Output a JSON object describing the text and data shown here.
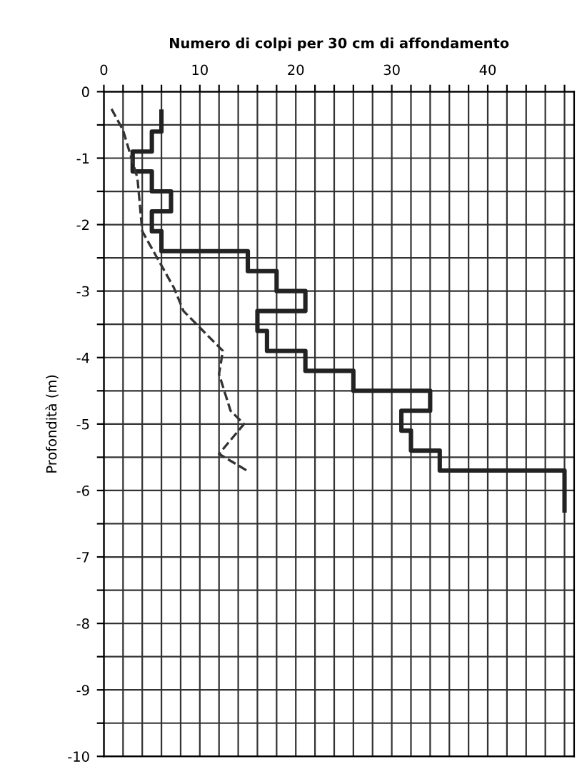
{
  "chart_data": {
    "type": "line",
    "title": "Numero di colpi per 30 cm di affondamento",
    "ylabel": "Profondità (m)",
    "series": [
      {
        "color": "#222222",
        "line_style": "solid",
        "x": [
          6,
          6,
          5,
          5,
          3,
          3,
          5,
          5,
          7,
          7,
          5,
          5,
          6,
          6,
          15,
          15,
          18,
          18,
          21,
          21,
          16,
          16,
          17,
          17,
          21,
          21,
          26,
          26,
          34,
          34,
          31,
          31,
          32,
          32,
          35,
          35,
          48,
          48
        ],
        "values": [
          -0.3,
          -0.6,
          -0.6,
          -0.9,
          -0.9,
          -1.2,
          -1.2,
          -1.5,
          -1.5,
          -1.8,
          -1.8,
          -2.1,
          -2.1,
          -2.4,
          -2.4,
          -2.7,
          -2.7,
          -3.0,
          -3.0,
          -3.3,
          -3.3,
          -3.6,
          -3.6,
          -3.9,
          -3.9,
          -4.2,
          -4.2,
          -4.5,
          -4.5,
          -4.8,
          -4.8,
          -5.1,
          -5.1,
          -5.4,
          -5.4,
          -5.7,
          -5.7,
          -6.3
        ]
      },
      {
        "color": "#333333",
        "line_style": "dashed",
        "x": [
          0.8,
          2,
          3.5,
          4,
          7.3,
          8.3,
          12.4,
          12,
          13.2,
          14.6,
          12,
          14.9
        ],
        "values": [
          -0.26,
          -0.58,
          -1.3,
          -2.1,
          -2.95,
          -3.3,
          -3.9,
          -4.25,
          -4.8,
          -5.0,
          -5.45,
          -5.7
        ]
      }
    ],
    "xlim": [
      0,
      49
    ],
    "ylim": [
      -10,
      0
    ],
    "xticks": [
      0,
      {
        "value": 2,
        "label": null
      },
      {
        "value": 4,
        "label": null
      },
      {
        "value": 6,
        "label": null
      },
      {
        "value": 8,
        "label": null
      },
      10,
      {
        "value": 12,
        "label": null
      },
      {
        "value": 14,
        "label": null
      },
      {
        "value": 16,
        "label": null
      },
      {
        "value": 18,
        "label": null
      },
      20,
      {
        "value": 22,
        "label": null
      },
      {
        "value": 24,
        "label": null
      },
      {
        "value": 26,
        "label": null
      },
      {
        "value": 28,
        "label": null
      },
      30,
      {
        "value": 32,
        "label": null
      },
      {
        "value": 34,
        "label": null
      },
      {
        "value": 36,
        "label": null
      },
      {
        "value": 38,
        "label": null
      },
      40,
      {
        "value": 42,
        "label": null
      },
      {
        "value": 44,
        "label": null
      },
      {
        "value": 46,
        "label": null
      },
      {
        "value": 48,
        "label": null
      }
    ],
    "yticks": [
      0,
      {
        "value": -0.5,
        "label": null
      },
      -1,
      {
        "value": -1.5,
        "label": null
      },
      -2,
      {
        "value": -2.5,
        "label": null
      },
      -3,
      {
        "value": -3.5,
        "label": null
      },
      -4,
      {
        "value": -4.5,
        "label": null
      },
      -5,
      {
        "value": -5.5,
        "label": null
      },
      -6,
      {
        "value": -6.5,
        "label": null
      },
      -7,
      {
        "value": -7.5,
        "label": null
      },
      -8,
      {
        "value": -8.5,
        "label": null
      },
      -9,
      {
        "value": -9.5,
        "label": null
      },
      -10
    ],
    "grid": true,
    "legend": false
  }
}
